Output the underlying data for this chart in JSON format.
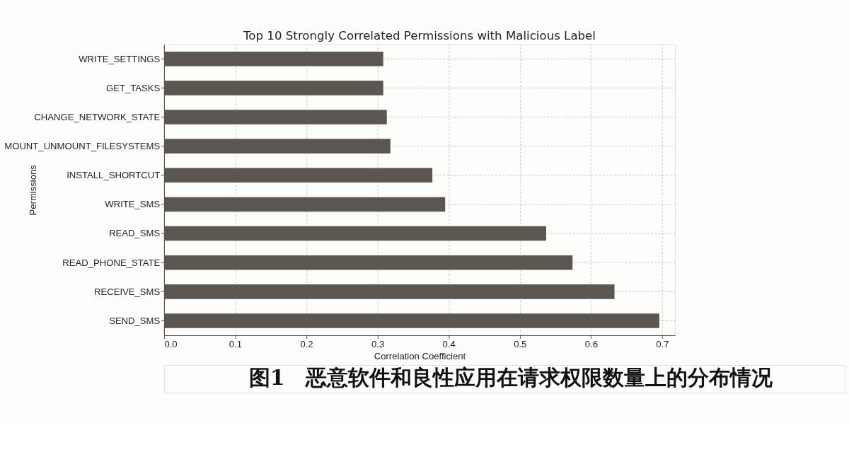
{
  "chart_data": {
    "type": "bar",
    "orientation": "horizontal",
    "title": "Top 10 Strongly Correlated Permissions with Malicious Label",
    "xlabel": "Correlation Coefficient",
    "ylabel": "Permissions",
    "categories": [
      "WRITE_SETTINGS",
      "GET_TASKS",
      "CHANGE_NETWORK_STATE",
      "MOUNT_UNMOUNT_FILESYSTEMS",
      "INSTALL_SHORTCUT",
      "WRITE_SMS",
      "READ_SMS",
      "READ_PHONE_STATE",
      "RECEIVE_SMS",
      "SEND_SMS"
    ],
    "values": [
      0.308,
      0.308,
      0.313,
      0.318,
      0.377,
      0.395,
      0.537,
      0.574,
      0.633,
      0.696
    ],
    "color": "#5c5650",
    "xlim": [
      0,
      0.718
    ],
    "xticks": [
      {
        "value": 0,
        "label": "0.0"
      },
      0.1,
      0.2,
      0.3,
      0.4,
      0.5,
      0.6,
      0.7
    ],
    "grid": true,
    "annotations": [
      "图1　恶意软件和良性应用在请求权限数量上的分布情况"
    ]
  }
}
